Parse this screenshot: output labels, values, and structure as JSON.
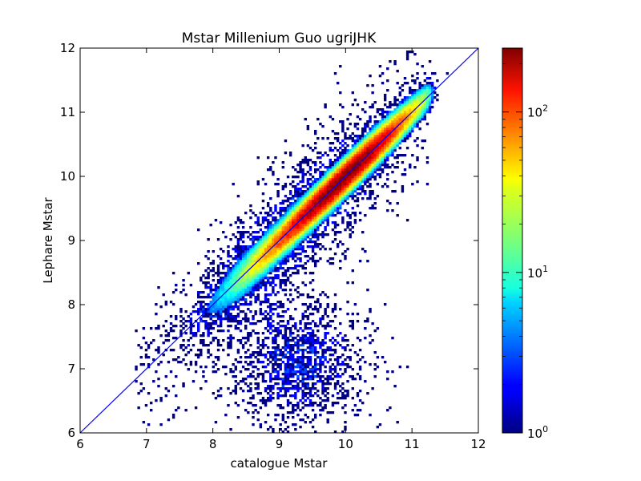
{
  "chart_data": {
    "type": "heatmap",
    "title": "Mstar Millenium Guo ugriJHK",
    "xlabel": "catalogue Mstar",
    "ylabel": "Lephare Mstar",
    "xlim": [
      6,
      12
    ],
    "ylim": [
      6,
      12
    ],
    "x_ticks": [
      "6",
      "7",
      "8",
      "9",
      "10",
      "11",
      "12"
    ],
    "y_ticks": [
      "6",
      "7",
      "8",
      "9",
      "10",
      "11",
      "12"
    ],
    "grid": false,
    "colormap": "jet",
    "colorbar": {
      "scale": "log",
      "range": [
        1,
        250
      ],
      "ticks": [
        {
          "value": 1,
          "base": "10",
          "exp": "0"
        },
        {
          "value": 10,
          "base": "10",
          "exp": "1"
        },
        {
          "value": 100,
          "base": "10",
          "exp": "2"
        }
      ]
    },
    "reference_line": {
      "label": "",
      "slope": 1,
      "intercept": 0,
      "color": "#0000ff"
    },
    "main_relation": {
      "x_range": [
        7.5,
        11.2
      ],
      "slope": 1,
      "peak_counts": 250,
      "scatter_dex": 0.15
    },
    "secondary_cloud": {
      "center": [
        9.3,
        7.1
      ],
      "counts_max": 3
    },
    "colors": {
      "reference_line": "#0000ff",
      "axes": "#000000",
      "background": "#ffffff"
    }
  }
}
